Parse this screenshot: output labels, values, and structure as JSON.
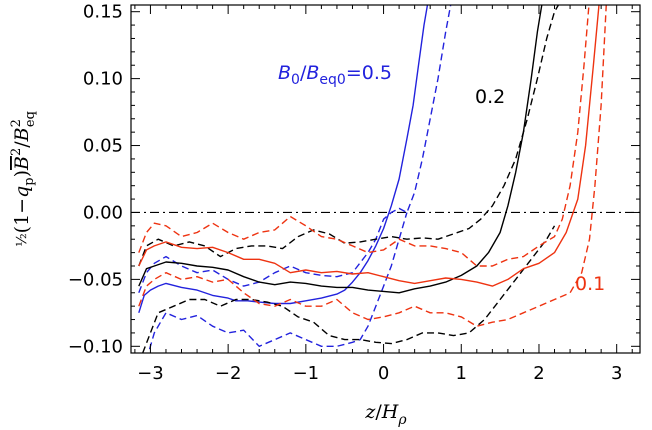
{
  "chart_data": {
    "type": "line",
    "xlabel": "z/Hρ",
    "ylabel": "½(1−qp)B̄²/B²eq",
    "xlim": [
      -3.25,
      3.3
    ],
    "ylim": [
      -0.105,
      0.155
    ],
    "xticks": [
      -3,
      -2,
      -1,
      0,
      1,
      2,
      3
    ],
    "xtick_labels": [
      "−3",
      "−2",
      "−1",
      "0",
      "1",
      "2",
      "3"
    ],
    "yticks": [
      -0.1,
      -0.05,
      0.0,
      0.05,
      0.1,
      0.15
    ],
    "ytick_labels": [
      "−0.10",
      "−0.05",
      "0.00",
      "0.05",
      "0.10",
      "0.15"
    ],
    "zero_line": {
      "y": 0,
      "style": "dash-dot",
      "color": "#000000"
    },
    "annotations": [
      {
        "text": "B0/Beq0=0.5",
        "color": "#2222dd"
      },
      {
        "text": "0.2",
        "color": "#000000"
      },
      {
        "text": "0.1",
        "color": "#ee3311"
      }
    ],
    "series": [
      {
        "id": "b05-mean",
        "color": "#2222dd",
        "style": "solid",
        "x": [
          -3.15,
          -3.08,
          -3.0,
          -2.9,
          -2.8,
          -2.6,
          -2.4,
          -2.2,
          -2.0,
          -1.9,
          -1.75,
          -1.6,
          -1.4,
          -1.2,
          -1.0,
          -0.8,
          -0.6,
          -0.5,
          -0.4,
          -0.3,
          -0.2,
          -0.1,
          0.0,
          0.1,
          0.2,
          0.3,
          0.38,
          0.45,
          0.52,
          0.58
        ],
        "y": [
          -0.075,
          -0.062,
          -0.058,
          -0.055,
          -0.053,
          -0.056,
          -0.058,
          -0.062,
          -0.064,
          -0.066,
          -0.066,
          -0.067,
          -0.068,
          -0.068,
          -0.066,
          -0.064,
          -0.061,
          -0.058,
          -0.052,
          -0.045,
          -0.036,
          -0.025,
          -0.012,
          0.005,
          0.025,
          0.055,
          0.08,
          0.11,
          0.14,
          0.16
        ]
      },
      {
        "id": "b05-upper",
        "color": "#2222dd",
        "style": "dashed",
        "x": [
          -3.15,
          -3.05,
          -2.95,
          -2.8,
          -2.6,
          -2.4,
          -2.2,
          -2.0,
          -1.8,
          -1.6,
          -1.4,
          -1.2,
          -1.0,
          -0.8,
          -0.6,
          -0.4,
          -0.2,
          -0.1,
          0.0,
          0.1,
          0.2,
          0.3,
          0.4,
          0.5,
          0.6,
          0.7,
          0.8,
          0.88
        ],
        "y": [
          -0.06,
          -0.045,
          -0.038,
          -0.033,
          -0.04,
          -0.045,
          -0.043,
          -0.05,
          -0.055,
          -0.052,
          -0.045,
          -0.04,
          -0.045,
          -0.047,
          -0.048,
          -0.045,
          -0.03,
          -0.02,
          -0.005,
          0.0,
          0.003,
          0.0,
          0.015,
          0.04,
          0.07,
          0.1,
          0.135,
          0.16
        ]
      },
      {
        "id": "b05-lower",
        "color": "#2222dd",
        "style": "dashed",
        "x": [
          -3.05,
          -2.95,
          -2.8,
          -2.6,
          -2.4,
          -2.2,
          -2.0,
          -1.8,
          -1.6,
          -1.4,
          -1.2,
          -1.0,
          -0.8,
          -0.6,
          -0.4,
          -0.3,
          -0.2,
          -0.1,
          0.0,
          0.1,
          0.2,
          0.3
        ],
        "y": [
          -0.11,
          -0.09,
          -0.075,
          -0.08,
          -0.077,
          -0.085,
          -0.09,
          -0.088,
          -0.1,
          -0.095,
          -0.09,
          -0.095,
          -0.1,
          -0.1,
          -0.097,
          -0.095,
          -0.085,
          -0.07,
          -0.055,
          -0.04,
          -0.02,
          0.0
        ]
      },
      {
        "id": "b02-mean",
        "color": "#000000",
        "style": "solid",
        "x": [
          -3.15,
          -3.05,
          -2.95,
          -2.8,
          -2.6,
          -2.4,
          -2.2,
          -2.0,
          -1.8,
          -1.6,
          -1.4,
          -1.2,
          -1.0,
          -0.8,
          -0.6,
          -0.4,
          -0.2,
          0.0,
          0.2,
          0.4,
          0.6,
          0.8,
          1.0,
          1.2,
          1.35,
          1.5,
          1.6,
          1.7,
          1.8,
          1.9,
          1.98,
          2.05
        ],
        "y": [
          -0.055,
          -0.042,
          -0.04,
          -0.037,
          -0.038,
          -0.04,
          -0.041,
          -0.043,
          -0.048,
          -0.052,
          -0.054,
          -0.052,
          -0.053,
          -0.055,
          -0.056,
          -0.056,
          -0.058,
          -0.059,
          -0.06,
          -0.057,
          -0.055,
          -0.052,
          -0.047,
          -0.04,
          -0.03,
          -0.015,
          0.005,
          0.03,
          0.06,
          0.1,
          0.135,
          0.16
        ]
      },
      {
        "id": "b02-upper",
        "color": "#000000",
        "style": "dashed",
        "x": [
          -3.15,
          -3.05,
          -2.9,
          -2.7,
          -2.5,
          -2.3,
          -2.1,
          -1.9,
          -1.7,
          -1.5,
          -1.3,
          -1.1,
          -0.9,
          -0.7,
          -0.5,
          -0.3,
          -0.1,
          0.1,
          0.3,
          0.5,
          0.7,
          0.9,
          1.1,
          1.25,
          1.4,
          1.55,
          1.7,
          1.85,
          1.98,
          2.1,
          2.2,
          2.3
        ],
        "y": [
          -0.04,
          -0.025,
          -0.02,
          -0.025,
          -0.022,
          -0.025,
          -0.033,
          -0.027,
          -0.025,
          -0.025,
          -0.027,
          -0.018,
          -0.013,
          -0.016,
          -0.023,
          -0.022,
          -0.02,
          -0.018,
          -0.02,
          -0.019,
          -0.02,
          -0.016,
          -0.012,
          -0.005,
          0.005,
          0.02,
          0.04,
          0.07,
          0.1,
          0.13,
          0.15,
          0.16
        ]
      },
      {
        "id": "b02-lower",
        "color": "#000000",
        "style": "dashed",
        "x": [
          -3.1,
          -3.0,
          -2.9,
          -2.7,
          -2.5,
          -2.3,
          -2.1,
          -1.9,
          -1.7,
          -1.5,
          -1.3,
          -1.1,
          -0.9,
          -0.7,
          -0.5,
          -0.3,
          -0.1,
          0.1,
          0.3,
          0.5,
          0.7,
          0.9,
          1.1,
          1.3,
          1.5,
          1.7,
          1.9,
          2.1,
          2.2
        ],
        "y": [
          -0.105,
          -0.09,
          -0.075,
          -0.07,
          -0.065,
          -0.065,
          -0.07,
          -0.065,
          -0.065,
          -0.067,
          -0.07,
          -0.078,
          -0.082,
          -0.092,
          -0.095,
          -0.095,
          -0.097,
          -0.098,
          -0.095,
          -0.09,
          -0.09,
          -0.092,
          -0.09,
          -0.08,
          -0.065,
          -0.05,
          -0.035,
          -0.02,
          -0.01
        ]
      },
      {
        "id": "b01-mean",
        "color": "#ee3311",
        "style": "solid",
        "x": [
          -3.15,
          -3.05,
          -2.95,
          -2.8,
          -2.6,
          -2.4,
          -2.2,
          -2.0,
          -1.8,
          -1.6,
          -1.4,
          -1.2,
          -1.0,
          -0.8,
          -0.6,
          -0.4,
          -0.2,
          0.0,
          0.2,
          0.4,
          0.6,
          0.8,
          1.0,
          1.2,
          1.4,
          1.6,
          1.8,
          2.0,
          2.2,
          2.35,
          2.5,
          2.6,
          2.7,
          2.78
        ],
        "y": [
          -0.04,
          -0.028,
          -0.025,
          -0.022,
          -0.026,
          -0.027,
          -0.026,
          -0.03,
          -0.035,
          -0.035,
          -0.038,
          -0.045,
          -0.043,
          -0.045,
          -0.044,
          -0.046,
          -0.045,
          -0.048,
          -0.051,
          -0.053,
          -0.051,
          -0.049,
          -0.05,
          -0.052,
          -0.055,
          -0.05,
          -0.042,
          -0.038,
          -0.03,
          -0.015,
          0.01,
          0.05,
          0.11,
          0.16
        ]
      },
      {
        "id": "b01-upper",
        "color": "#ee3311",
        "style": "dashed",
        "x": [
          -3.15,
          -3.05,
          -2.95,
          -2.8,
          -2.6,
          -2.4,
          -2.2,
          -2.0,
          -1.8,
          -1.6,
          -1.4,
          -1.2,
          -1.0,
          -0.8,
          -0.6,
          -0.4,
          -0.2,
          0.0,
          0.2,
          0.4,
          0.6,
          0.8,
          1.0,
          1.2,
          1.4,
          1.6,
          1.8,
          2.0,
          2.2,
          2.3,
          2.4,
          2.5,
          2.58,
          2.65
        ],
        "y": [
          -0.03,
          -0.015,
          -0.008,
          -0.01,
          -0.018,
          -0.015,
          -0.008,
          -0.015,
          -0.02,
          -0.015,
          -0.013,
          -0.003,
          -0.01,
          -0.018,
          -0.02,
          -0.025,
          -0.03,
          -0.028,
          -0.02,
          -0.025,
          -0.025,
          -0.027,
          -0.03,
          -0.04,
          -0.04,
          -0.035,
          -0.033,
          -0.025,
          -0.018,
          -0.005,
          0.02,
          0.06,
          0.11,
          0.16
        ]
      },
      {
        "id": "b01-lower",
        "color": "#ee3311",
        "style": "dashed",
        "x": [
          -3.15,
          -3.05,
          -2.95,
          -2.8,
          -2.6,
          -2.4,
          -2.2,
          -2.0,
          -1.8,
          -1.6,
          -1.4,
          -1.2,
          -1.0,
          -0.8,
          -0.6,
          -0.4,
          -0.2,
          0.0,
          0.2,
          0.4,
          0.6,
          0.8,
          1.0,
          1.2,
          1.4,
          1.6,
          1.8,
          2.0,
          2.2,
          2.4,
          2.55,
          2.65,
          2.72,
          2.8,
          2.87
        ],
        "y": [
          -0.07,
          -0.055,
          -0.05,
          -0.045,
          -0.05,
          -0.048,
          -0.052,
          -0.05,
          -0.06,
          -0.068,
          -0.07,
          -0.065,
          -0.07,
          -0.07,
          -0.065,
          -0.075,
          -0.08,
          -0.078,
          -0.075,
          -0.07,
          -0.075,
          -0.075,
          -0.078,
          -0.085,
          -0.082,
          -0.08,
          -0.075,
          -0.07,
          -0.065,
          -0.06,
          -0.045,
          -0.02,
          0.02,
          0.08,
          0.16
        ]
      }
    ]
  }
}
